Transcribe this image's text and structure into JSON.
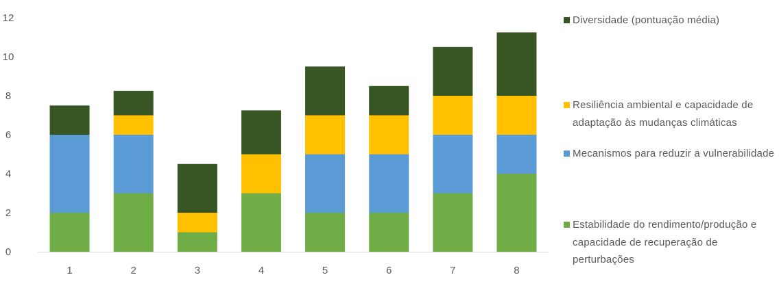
{
  "chart_data": {
    "type": "bar",
    "stacked": true,
    "categories": [
      "1",
      "2",
      "3",
      "4",
      "5",
      "6",
      "7",
      "8"
    ],
    "series": [
      {
        "name": "Estabilidade do rendimento/produção e capacidade de recuperação de perturbações",
        "values": [
          2,
          3,
          1,
          3,
          2,
          2,
          3,
          4
        ],
        "color": "#70ad47"
      },
      {
        "name": "Mecanismos para reduzir a vulnerabilidade",
        "values": [
          4,
          3,
          0,
          0,
          3,
          3,
          3,
          2
        ],
        "color": "#5b9bd5"
      },
      {
        "name": "Resiliência ambiental e capacidade de adaptação às mudanças climáticas",
        "values": [
          0,
          1,
          1,
          2,
          2,
          2,
          2,
          2
        ],
        "color": "#ffc000"
      },
      {
        "name": "Diversidade (pontuação média)",
        "values": [
          1.5,
          1.25,
          2.5,
          2.25,
          2.5,
          1.5,
          2.5,
          3.25
        ],
        "color": "#375623"
      }
    ],
    "yticks": [
      "0",
      "2",
      "4",
      "6",
      "8",
      "10",
      "12"
    ],
    "ylim": [
      0,
      12
    ],
    "grid": false,
    "legend_position": "right"
  },
  "legend": [
    {
      "label": "Diversidade (pontuação média)",
      "color": "#375623"
    },
    {
      "label": "Resiliência ambiental e capacidade de adaptação às mudanças climáticas",
      "color": "#ffc000"
    },
    {
      "label": "Mecanismos para reduzir a vulnerabilidade",
      "color": "#5b9bd5"
    },
    {
      "label": "Estabilidade do rendimento/produção e capacidade de recuperação de perturbações",
      "color": "#70ad47"
    }
  ]
}
